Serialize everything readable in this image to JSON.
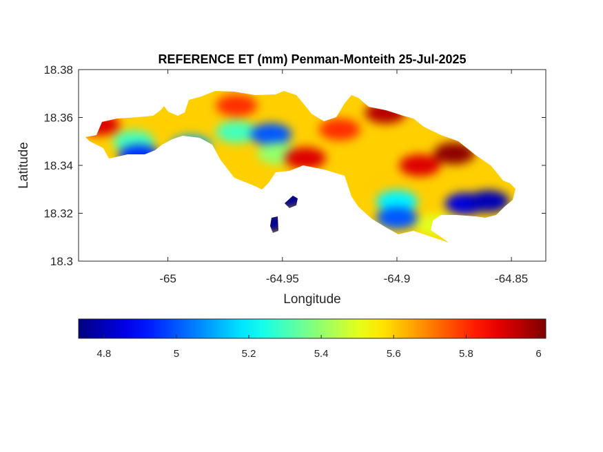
{
  "chart_data": {
    "type": "heatmap",
    "title": "REFERENCE ET (mm) Penman-Monteith 25-Jul-2025",
    "xlabel": "Longitude",
    "ylabel": "Latitude",
    "xlim": [
      -65.039,
      -64.835
    ],
    "ylim": [
      18.3,
      18.38
    ],
    "x_ticks": [
      -65,
      -64.95,
      -64.9,
      -64.85
    ],
    "x_tick_labels": [
      "-65",
      "-64.95",
      "-64.9",
      "-64.85"
    ],
    "y_ticks": [
      18.3,
      18.32,
      18.34,
      18.36,
      18.38
    ],
    "y_tick_labels": [
      "18.3",
      "18.32",
      "18.34",
      "18.36",
      "18.38"
    ],
    "colorbar": {
      "colormap": "jet",
      "range": [
        4.73,
        6.02
      ],
      "ticks": [
        4.8,
        5,
        5.2,
        5.4,
        5.6,
        5.8,
        6
      ],
      "tick_labels": [
        "4.8",
        "5",
        "5.2",
        "5.4",
        "5.6",
        "5.8",
        "6"
      ],
      "orientation": "horizontal",
      "placement": "bottom"
    },
    "value_range_observed": [
      4.75,
      6.0
    ],
    "regions": [
      {
        "lon": -65.03,
        "lat": 18.357,
        "value": 5.9
      },
      {
        "lon": -65.015,
        "lat": 18.35,
        "value": 5.3
      },
      {
        "lon": -65.0125,
        "lat": 18.344,
        "value": 4.95
      },
      {
        "lon": -64.99,
        "lat": 18.348,
        "value": 5.1
      },
      {
        "lon": -64.97,
        "lat": 18.354,
        "value": 5.3
      },
      {
        "lon": -64.955,
        "lat": 18.353,
        "value": 5.0
      },
      {
        "lon": -64.952,
        "lat": 18.345,
        "value": 5.4
      },
      {
        "lon": -64.97,
        "lat": 18.365,
        "value": 5.8
      },
      {
        "lon": -64.94,
        "lat": 18.343,
        "value": 5.9
      },
      {
        "lon": -64.925,
        "lat": 18.355,
        "value": 5.8
      },
      {
        "lon": -64.905,
        "lat": 18.362,
        "value": 5.95
      },
      {
        "lon": -64.875,
        "lat": 18.345,
        "value": 6.0
      },
      {
        "lon": -64.89,
        "lat": 18.34,
        "value": 5.9
      },
      {
        "lon": -64.905,
        "lat": 18.332,
        "value": 5.6
      },
      {
        "lon": -64.9,
        "lat": 18.325,
        "value": 5.2
      },
      {
        "lon": -64.9,
        "lat": 18.318,
        "value": 5.0
      },
      {
        "lon": -64.87,
        "lat": 18.324,
        "value": 4.85
      },
      {
        "lon": -64.86,
        "lat": 18.325,
        "value": 4.8
      },
      {
        "lon": -64.883,
        "lat": 18.315,
        "value": 5.5
      },
      {
        "lon": -64.948,
        "lat": 18.326,
        "value": 4.75
      },
      {
        "lon": -64.955,
        "lat": 18.316,
        "value": 4.75
      }
    ]
  }
}
